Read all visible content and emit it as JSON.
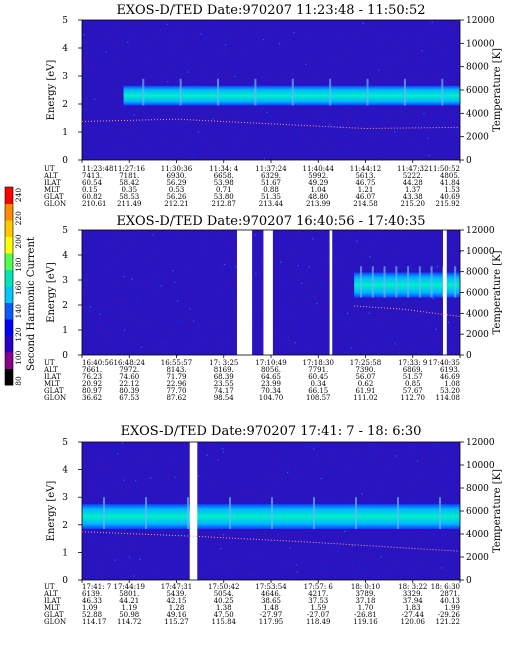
{
  "colorbar": {
    "label": "Second Harmonic Current",
    "ticks": [
      "240",
      "220",
      "200",
      "180",
      "160",
      "140",
      "120",
      "100",
      "80"
    ],
    "range": [
      80,
      240
    ],
    "colors": [
      "#000000",
      "#8b008b",
      "#2a00c8",
      "#0000ff",
      "#0a5aff",
      "#00c8ff",
      "#00e6b4",
      "#50ff50",
      "#ffff00",
      "#ffc800",
      "#ff8c00",
      "#ff0000"
    ]
  },
  "chart_data": [
    {
      "type": "heatmap",
      "title": "EXOS-D/TED   Date:970207   11:23:48 - 11:50:52",
      "ylabel": "Energy [eV]",
      "y2label": "Temperature [K]",
      "ylim": [
        0,
        5
      ],
      "y_ticks": [
        "0",
        "1",
        "2",
        "3",
        "4",
        "5"
      ],
      "y2lim": [
        0,
        12000
      ],
      "y2_ticks": [
        "0",
        "2000",
        "4000",
        "6000",
        "8000",
        "10000",
        "12000"
      ],
      "band": {
        "center": 2.3,
        "half_width": 0.35,
        "start_fraction": 0.11,
        "end_fraction": 1.0
      },
      "gaps": [],
      "temperature_curve": [
        [
          0,
          3300
        ],
        [
          0.25,
          3500
        ],
        [
          0.5,
          3100
        ],
        [
          0.75,
          2700
        ],
        [
          1,
          2800
        ]
      ],
      "table": {
        "row_labels": [
          "UT",
          "ALT",
          "ILAT",
          "MLT",
          "GLAT",
          "GLON"
        ],
        "columns": [
          [
            "11:23:48",
            "7413.",
            "60.54",
            "0.15",
            "60.82",
            "210.61"
          ],
          [
            "11:27:16",
            "7181.",
            "58.42",
            "0.35",
            "58.53",
            "211.49"
          ],
          [
            "11:30:36",
            "6930.",
            "56.29",
            "0.53",
            "56.26",
            "212.21"
          ],
          [
            "11:34: 4",
            "6658.",
            "53.98",
            "0.71",
            "53.80",
            "212.87"
          ],
          [
            "11:37:24",
            "6329.",
            "51.67",
            "0.88",
            "51.35",
            "213.44"
          ],
          [
            "11:40:44",
            "5992.",
            "49.29",
            "1.04",
            "48.80",
            "213.99"
          ],
          [
            "11:44:12",
            "5613.",
            "46.75",
            "1.21",
            "46.07",
            "214.58"
          ],
          [
            "11:47:32",
            "5222.",
            "44.28",
            "1.37",
            "43.38",
            "215.20"
          ],
          [
            "11:50:52",
            "4805.",
            "41.84",
            "1.53",
            "40.69",
            "215.92"
          ]
        ]
      }
    },
    {
      "type": "heatmap",
      "title": "EXOS-D/TED   Date:970207   16:40:56 - 17:40:35",
      "ylabel": "Energy [eV]",
      "y2label": "Temperature [K]",
      "ylim": [
        0,
        5
      ],
      "y_ticks": [
        "0",
        "1",
        "2",
        "3",
        "4",
        "5"
      ],
      "y2lim": [
        0,
        12000
      ],
      "y2_ticks": [
        "0",
        "2000",
        "4000",
        "6000",
        "8000",
        "10000",
        "12000"
      ],
      "band": {
        "center": 2.8,
        "half_width": 0.5,
        "start_fraction": 0.72,
        "end_fraction": 1.0
      },
      "gaps": [
        [
          0.41,
          0.45
        ],
        [
          0.48,
          0.505
        ],
        [
          0.655,
          0.662
        ],
        [
          0.955,
          0.965
        ]
      ],
      "temperature_curve": [
        [
          0.72,
          4700
        ],
        [
          0.85,
          4400
        ],
        [
          1,
          3700
        ]
      ],
      "table": {
        "row_labels": [
          "UT",
          "ALT",
          "ILAT",
          "MLT",
          "GLAT",
          "GLON"
        ],
        "columns": [
          [
            "16:40:56",
            "7661.",
            "76.23",
            "20.92",
            "80.97",
            "36.62"
          ],
          [
            "16:48:24",
            "7972.",
            "74.60",
            "22.12",
            "80.39",
            "67.53"
          ],
          [
            "16:55:57",
            "8143.",
            "71.79",
            "22.96",
            "77.70",
            "87.62"
          ],
          [
            "17: 3:25",
            "8169.",
            "68.39",
            "23.55",
            "74.17",
            "98.54"
          ],
          [
            "17:10:49",
            "8056.",
            "64.65",
            "23.99",
            "70.34",
            "104.70"
          ],
          [
            "17:18:30",
            "7791.",
            "60.45",
            "0.34",
            "66.15",
            "108.57"
          ],
          [
            "17:25:58",
            "7390.",
            "56.07",
            "0.62",
            "61.91",
            "111.02"
          ],
          [
            "17:33: 9",
            "6869.",
            "51.57",
            "0.85",
            "57.67",
            "112.70"
          ],
          [
            "17:40:35",
            "6193.",
            "46.69",
            "1.08",
            "53.20",
            "114.08"
          ]
        ]
      }
    },
    {
      "type": "heatmap",
      "title": "EXOS-D/TED   Date:970207   17:41: 7 - 18: 6:30",
      "ylabel": "Energy [eV]",
      "y2label": "Temperature [K]",
      "ylim": [
        0,
        5
      ],
      "y_ticks": [
        "0",
        "1",
        "2",
        "3",
        "4",
        "5"
      ],
      "y2lim": [
        0,
        12000
      ],
      "y2_ticks": [
        "0",
        "2000",
        "4000",
        "6000",
        "8000",
        "10000",
        "12000"
      ],
      "band": {
        "center": 2.3,
        "half_width": 0.45,
        "start_fraction": 0.0,
        "end_fraction": 1.0
      },
      "gaps": [
        [
          0.285,
          0.305
        ]
      ],
      "temperature_curve": [
        [
          0,
          4200
        ],
        [
          0.3,
          3800
        ],
        [
          0.6,
          3300
        ],
        [
          1,
          2500
        ]
      ],
      "table": {
        "row_labels": [
          "UT",
          "ALT",
          "ILAT",
          "MLT",
          "GLAT",
          "GLON"
        ],
        "columns": [
          [
            "17:41: 7",
            "6139.",
            "46.33",
            "1.09",
            "52.88",
            "114.17"
          ],
          [
            "17:44:19",
            "5801.",
            "44.21",
            "1.19",
            "50.98",
            "114.72"
          ],
          [
            "17:47:31",
            "5439.",
            "42.15",
            "1.28",
            "49.16",
            "115.27"
          ],
          [
            "17:50:42",
            "5054.",
            "40.25",
            "1.38",
            "47.50",
            "115.84"
          ],
          [
            "17:53:54",
            "4646.",
            "38.65",
            "1.48",
            "-27.97",
            "117.95"
          ],
          [
            "17:57: 6",
            "4217.",
            "37.53",
            "1.59",
            "-27.07",
            "118.49"
          ],
          [
            "18: 0:10",
            "3789.",
            "37.18",
            "1.70",
            "-26.81",
            "119.16"
          ],
          [
            "18: 3:22",
            "3329.",
            "37.94",
            "1.83",
            "-27.44",
            "120.06"
          ],
          [
            "18: 6:30",
            "2871.",
            "40.13",
            "1.99",
            "-29.26",
            "121.22"
          ]
        ]
      }
    }
  ]
}
